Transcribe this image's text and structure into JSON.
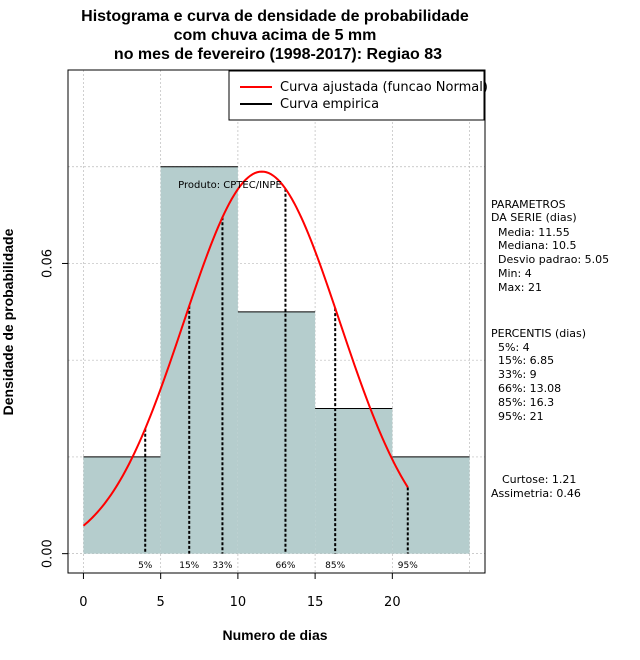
{
  "chart_data": {
    "type": "histogram",
    "title_lines": [
      "Histograma e curva de densidade de probabilidade",
      "com chuva acima de 5 mm",
      "no mes de fevereiro (1998-2017): Regiao 83"
    ],
    "xlabel": "Numero de dias",
    "ylabel": "Densidade de probabilidade",
    "xlim": [
      -1,
      26
    ],
    "ylim": [
      -0.004,
      0.1
    ],
    "x_ticks": [
      0,
      5,
      10,
      15,
      20
    ],
    "y_ticks": [
      0.0,
      0.06
    ],
    "y_tick_labels": [
      "0.00",
      "0.06"
    ],
    "grid": true,
    "bins": [
      {
        "start": 0,
        "end": 5,
        "density": 0.02
      },
      {
        "start": 5,
        "end": 10,
        "density": 0.08
      },
      {
        "start": 10,
        "end": 15,
        "density": 0.05
      },
      {
        "start": 15,
        "end": 20,
        "density": 0.03
      },
      {
        "start": 20,
        "end": 25,
        "density": 0.02
      }
    ],
    "fitted_curve": {
      "name": "Curva ajustada (funcao Normal)",
      "mean": 11.55,
      "sd": 5.05,
      "x_range": [
        0,
        21
      ],
      "color": "#ff0000"
    },
    "empirical_curve": {
      "name": "Curva empirica",
      "color": "#000000"
    },
    "percentile_markers": [
      {
        "label": "5%",
        "x": 4
      },
      {
        "label": "15%",
        "x": 6.85
      },
      {
        "label": "33%",
        "x": 9
      },
      {
        "label": "66%",
        "x": 13.08
      },
      {
        "label": "85%",
        "x": 16.3
      },
      {
        "label": "95%",
        "x": 21
      }
    ],
    "annotation": "Produto: CPTEC/INPE",
    "parameters": {
      "heading": [
        "PARAMETROS",
        "DA SERIE (dias)"
      ],
      "lines": [
        "Media: 11.55",
        "Mediana: 10.5",
        "Desvio padrao: 5.05",
        "Min: 4",
        "Max: 21"
      ]
    },
    "percentis": {
      "heading": "PERCENTIS (dias)",
      "lines": [
        "5%: 4",
        "15%: 6.85",
        "33%: 9",
        "66%: 13.08",
        "85%: 16.3",
        "95%: 21"
      ]
    },
    "stats": [
      "Curtose: 1.21",
      "Assimetria: 0.46"
    ],
    "colors": {
      "bar_fill": "#b5cdcd",
      "curve": "#ff0000",
      "grid": "#bbbbbb"
    }
  }
}
